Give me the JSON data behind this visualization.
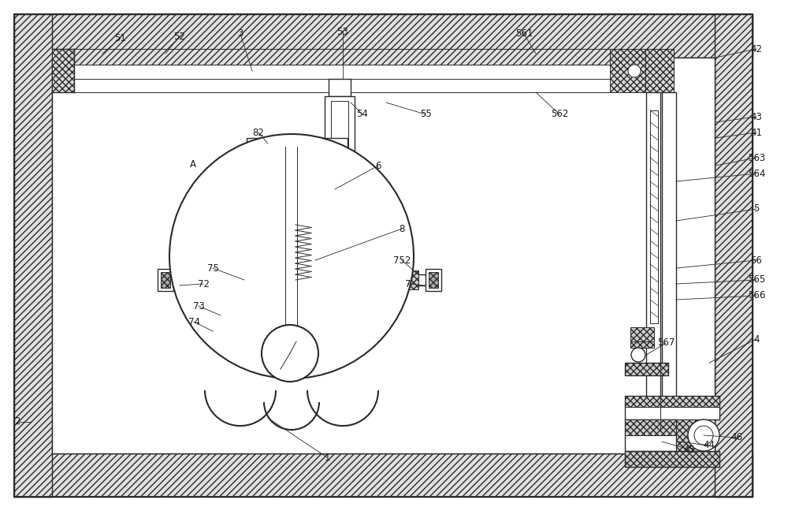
{
  "bg_color": "#ffffff",
  "line_color": "#2a2a2a",
  "text_color": "#1a1a1a",
  "fig_width": 10.0,
  "fig_height": 6.48,
  "dpi": 100
}
